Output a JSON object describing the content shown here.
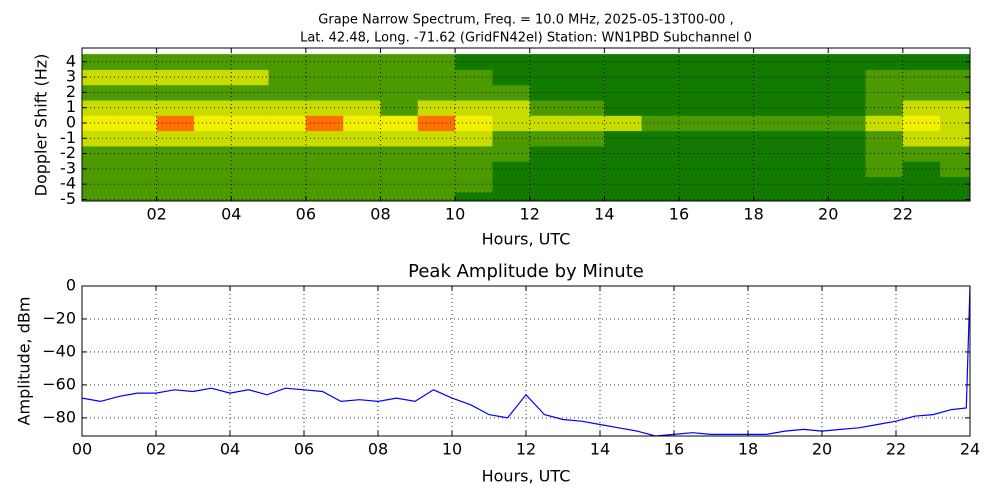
{
  "chart_data": [
    {
      "type": "heatmap",
      "title_lines": [
        "Grape Narrow Spectrum, Freq. = 10.0 MHz, 2025-05-13T00-00 ,",
        "Lat.  42.48, Long. -71.62 (GridFN42el) Station: WN1PBD Subchannel 0"
      ],
      "xlabel": "Hours, UTC",
      "ylabel": "Doppler Shift (Hz)",
      "xlim": [
        0,
        23.8
      ],
      "ylim": [
        -5.1,
        4.9
      ],
      "xticks": [
        {
          "value": 2,
          "label": "02"
        },
        {
          "value": 4,
          "label": "04"
        },
        {
          "value": 6,
          "label": "06"
        },
        {
          "value": 8,
          "label": "08"
        },
        10,
        12,
        14,
        16,
        18,
        20,
        22
      ],
      "yticks": [
        -5,
        -4,
        -3,
        -2,
        -1,
        0,
        1,
        2,
        3,
        4
      ],
      "grid": true,
      "colors": [
        "#137a00",
        "#4c9a00",
        "#c8dc00",
        "#f0f000",
        "#ff7000"
      ],
      "x": [
        0.5,
        1.5,
        2.5,
        3.5,
        4.5,
        5.5,
        6.5,
        7.5,
        8.5,
        9.5,
        10.5,
        11.5,
        12.5,
        13.5,
        14.5,
        15.5,
        16.5,
        17.5,
        18.5,
        19.5,
        20.5,
        21.5,
        22.5,
        23.5
      ],
      "y": [
        -5,
        -4,
        -3,
        -2,
        -1,
        0,
        1,
        2,
        3,
        4
      ],
      "z": [
        [
          1,
          1,
          1,
          1,
          1,
          1,
          1,
          1,
          1,
          1,
          0,
          0,
          0,
          0,
          0,
          0,
          0,
          0,
          0,
          0,
          0,
          0,
          0,
          0
        ],
        [
          1,
          1,
          1,
          1,
          1,
          1,
          1,
          1,
          1,
          1,
          1,
          0,
          0,
          0,
          0,
          0,
          0,
          0,
          0,
          0,
          0,
          0,
          0,
          0
        ],
        [
          1,
          1,
          1,
          1,
          1,
          1,
          1,
          1,
          1,
          1,
          1,
          0,
          0,
          0,
          0,
          0,
          0,
          0,
          0,
          0,
          0,
          1,
          0,
          1
        ],
        [
          1,
          1,
          1,
          1,
          1,
          1,
          1,
          1,
          1,
          1,
          1,
          1,
          0,
          0,
          0,
          0,
          0,
          0,
          0,
          0,
          0,
          1,
          1,
          1
        ],
        [
          2,
          2,
          2,
          2,
          2,
          2,
          2,
          2,
          2,
          2,
          2,
          1,
          1,
          1,
          0,
          0,
          0,
          0,
          0,
          0,
          0,
          1,
          2,
          2
        ],
        [
          3,
          3,
          4,
          3,
          3,
          3,
          4,
          3,
          3,
          4,
          3,
          2,
          2,
          2,
          2,
          1,
          1,
          1,
          1,
          1,
          1,
          2,
          3,
          2
        ],
        [
          2,
          2,
          2,
          2,
          2,
          2,
          2,
          2,
          1,
          2,
          2,
          2,
          1,
          1,
          0,
          0,
          0,
          0,
          0,
          0,
          0,
          1,
          2,
          2
        ],
        [
          1,
          1,
          1,
          1,
          1,
          1,
          1,
          1,
          1,
          1,
          1,
          1,
          0,
          0,
          0,
          0,
          0,
          0,
          0,
          0,
          0,
          1,
          1,
          1
        ],
        [
          2,
          2,
          2,
          2,
          2,
          1,
          1,
          1,
          1,
          1,
          1,
          0,
          0,
          0,
          0,
          0,
          0,
          0,
          0,
          0,
          0,
          1,
          1,
          1
        ],
        [
          1,
          1,
          1,
          1,
          1,
          1,
          1,
          1,
          1,
          1,
          0,
          0,
          0,
          0,
          0,
          0,
          0,
          0,
          0,
          0,
          0,
          0,
          0,
          0
        ]
      ]
    },
    {
      "type": "line",
      "title": "Peak Amplitude by Minute",
      "xlabel": "Hours, UTC",
      "ylabel": "Amplitude, dBm",
      "xlim": [
        0,
        24
      ],
      "ylim": [
        -91,
        0
      ],
      "xticks": [
        {
          "value": 0,
          "label": "00"
        },
        {
          "value": 2,
          "label": "02"
        },
        {
          "value": 4,
          "label": "04"
        },
        {
          "value": 6,
          "label": "06"
        },
        {
          "value": 8,
          "label": "08"
        },
        10,
        12,
        14,
        16,
        18,
        20,
        22,
        24
      ],
      "yticks": [
        0,
        {
          "value": -20,
          "label": "−20"
        },
        {
          "value": -40,
          "label": "−40"
        },
        {
          "value": -60,
          "label": "−60"
        },
        {
          "value": -80,
          "label": "−80"
        }
      ],
      "grid": true,
      "color": "#0000ff",
      "x": [
        0,
        0.5,
        1,
        1.5,
        2,
        2.5,
        3,
        3.5,
        4,
        4.5,
        5,
        5.5,
        6,
        6.5,
        7,
        7.5,
        8,
        8.5,
        9,
        9.5,
        10,
        10.5,
        11,
        11.5,
        12,
        12.5,
        13,
        13.5,
        14,
        14.5,
        15,
        15.5,
        16,
        16.5,
        17,
        17.5,
        18,
        18.5,
        19,
        19.5,
        20,
        20.5,
        21,
        21.5,
        22,
        22.5,
        23,
        23.5,
        23.9,
        24
      ],
      "values": [
        -68,
        -70,
        -67,
        -65,
        -65,
        -63,
        -64,
        -62,
        -65,
        -63,
        -66,
        -62,
        -63,
        -64,
        -70,
        -69,
        -70,
        -68,
        -70,
        -63,
        -68,
        -72,
        -78,
        -80,
        -66,
        -78,
        -81,
        -82,
        -84,
        -86,
        -88,
        -91,
        -90,
        -89,
        -90,
        -90,
        -90,
        -90,
        -88,
        -87,
        -88,
        -87,
        -86,
        -84,
        -82,
        -79,
        -78,
        -75,
        -74,
        0
      ]
    }
  ]
}
